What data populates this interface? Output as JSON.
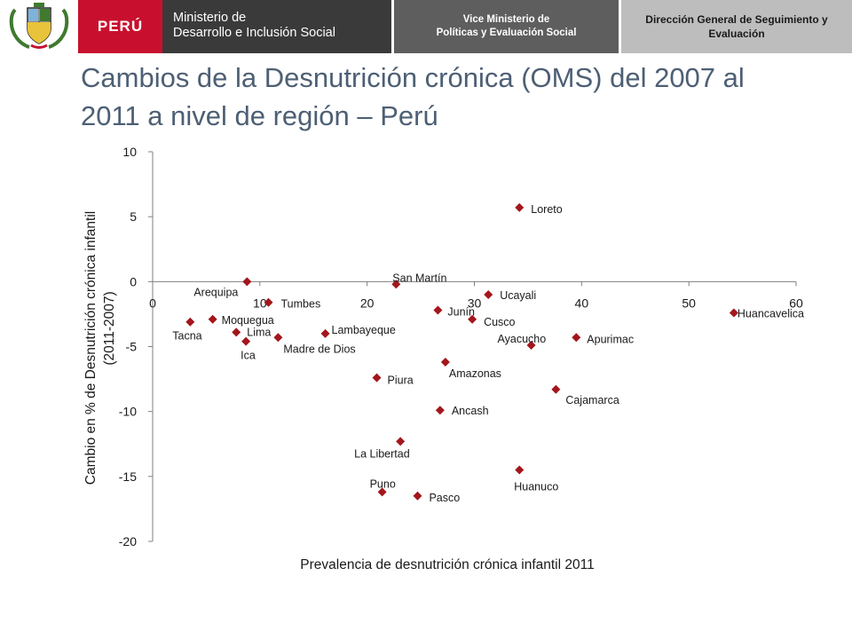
{
  "header": {
    "country": "PERÚ",
    "ministry_line1": "Ministerio de",
    "ministry_line2": "Desarrollo e Inclusión Social",
    "vice_line1": "Vice Ministerio de",
    "vice_line2": "Políticas y Evaluación Social",
    "direction_line1": "Dirección General de Seguimiento y",
    "direction_line2": "Evaluación"
  },
  "slide": {
    "title_line1": "Cambios de la Desnutrición crónica (OMS) del 2007 al",
    "title_line2": "2011 a nivel de región – Perú"
  },
  "colors": {
    "marker": "#a3161b",
    "axis": "#808080",
    "text": "#1a1a1a",
    "title": "#4d5f74",
    "peru_red": "#c8102e"
  },
  "chart_data": {
    "type": "scatter",
    "title": "",
    "xlabel": "Prevalencia de desnutrición crónica infantil 2011",
    "ylabel_line1": "Cambio en % de Desnutrición crónica infantil",
    "ylabel_line2": "(2011-2007)",
    "xlim": [
      0,
      60
    ],
    "ylim": [
      -20,
      10
    ],
    "xticks": [
      0,
      10,
      20,
      30,
      40,
      50,
      60
    ],
    "yticks": [
      10,
      5,
      0,
      -5,
      -10,
      -15,
      -20
    ],
    "grid": false,
    "legend": "none",
    "points": [
      {
        "label": "Arequipa",
        "x": 8.8,
        "y": 0
      },
      {
        "label": "Tumbes",
        "x": 10.8,
        "y": -1.6
      },
      {
        "label": "San Martín",
        "x": 22.7,
        "y": -0.2
      },
      {
        "label": "Ucayali",
        "x": 31.3,
        "y": -1.0
      },
      {
        "label": "Loreto",
        "x": 34.2,
        "y": 5.7
      },
      {
        "label": "Junín",
        "x": 26.6,
        "y": -2.2
      },
      {
        "label": "Cusco",
        "x": 29.8,
        "y": -2.9
      },
      {
        "label": "Huancavelica",
        "x": 54.2,
        "y": -2.4
      },
      {
        "label": "Tacna",
        "x": 3.5,
        "y": -3.1
      },
      {
        "label": "Moquegua",
        "x": 5.6,
        "y": -2.9
      },
      {
        "label": "Lima",
        "x": 7.8,
        "y": -3.9
      },
      {
        "label": "Ica",
        "x": 8.7,
        "y": -4.6
      },
      {
        "label": "Madre de Dios",
        "x": 11.7,
        "y": -4.3
      },
      {
        "label": "Lambayeque",
        "x": 16.1,
        "y": -4.0
      },
      {
        "label": "Ayacucho",
        "x": 35.3,
        "y": -4.9
      },
      {
        "label": "Apurimac",
        "x": 39.5,
        "y": -4.3
      },
      {
        "label": "Amazonas",
        "x": 27.3,
        "y": -6.2
      },
      {
        "label": "Piura",
        "x": 20.9,
        "y": -7.4
      },
      {
        "label": "Cajamarca",
        "x": 37.6,
        "y": -8.3
      },
      {
        "label": "Ancash",
        "x": 26.8,
        "y": -9.9
      },
      {
        "label": "La Libertad",
        "x": 23.1,
        "y": -12.3
      },
      {
        "label": "Huanuco",
        "x": 34.2,
        "y": -14.5
      },
      {
        "label": "Puno",
        "x": 21.4,
        "y": -16.2
      },
      {
        "label": "Pasco",
        "x": 24.7,
        "y": -16.5
      }
    ]
  }
}
